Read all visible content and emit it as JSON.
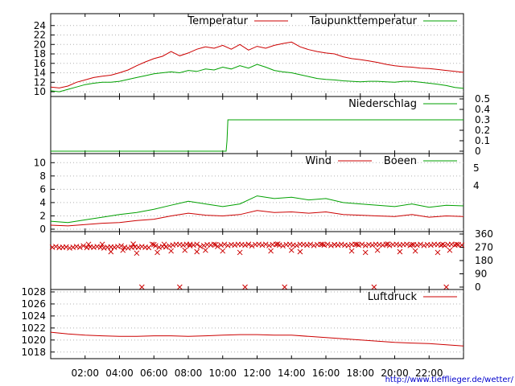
{
  "footer": {
    "url": "http://www.tiefflieger.de/wetter/"
  },
  "colors": {
    "red": "#cc0000",
    "green": "#00a000",
    "grid": "#b0b0b0",
    "axis": "#000000",
    "url": "#0000cc"
  },
  "chart_data": [
    {
      "type": "line",
      "id": "temperature",
      "ylim": [
        9.5,
        26
      ],
      "yticks": [
        "10",
        "12",
        "14",
        "16",
        "18",
        "20",
        "22",
        "24"
      ],
      "yticks_values": [
        10,
        12,
        14,
        16,
        18,
        20,
        22,
        24
      ],
      "grid": true,
      "legend_placement": "top-right",
      "series": [
        {
          "name": "Temperatur",
          "color": "#cc0000",
          "x": [
            0,
            0.5,
            1,
            1.5,
            2,
            2.5,
            3,
            3.5,
            4,
            4.5,
            5,
            5.5,
            6,
            6.5,
            7,
            7.5,
            8,
            8.5,
            9,
            9.5,
            10,
            10.5,
            11,
            11.5,
            12,
            12.5,
            13,
            13.5,
            14,
            14.5,
            15,
            15.5,
            16,
            16.5,
            17,
            17.5,
            18,
            18.5,
            19,
            19.5,
            20,
            20.5,
            21,
            21.5,
            22,
            22.5,
            23,
            23.5,
            24
          ],
          "y": [
            11,
            10.8,
            11.2,
            12,
            12.5,
            13,
            13.3,
            13.5,
            14,
            14.6,
            15.5,
            16.3,
            17,
            17.5,
            18.5,
            17.6,
            18.2,
            19,
            19.5,
            19.2,
            19.8,
            19,
            20,
            18.8,
            19.6,
            19.2,
            19.8,
            20.2,
            20.5,
            19.5,
            18.9,
            18.5,
            18.2,
            18,
            17.4,
            17,
            16.8,
            16.5,
            16.2,
            15.8,
            15.5,
            15.3,
            15.2,
            15,
            14.9,
            14.7,
            14.5,
            14.3,
            14.1
          ]
        },
        {
          "name": "Taupunkttemperatur",
          "color": "#00a000",
          "x": [
            0,
            0.5,
            1,
            1.5,
            2,
            2.5,
            3,
            3.5,
            4,
            4.5,
            5,
            5.5,
            6,
            6.5,
            7,
            7.5,
            8,
            8.5,
            9,
            9.5,
            10,
            10.5,
            11,
            11.5,
            12,
            12.5,
            13,
            13.5,
            14,
            14.5,
            15,
            15.5,
            16,
            16.5,
            17,
            17.5,
            18,
            18.5,
            19,
            19.5,
            20,
            20.5,
            21,
            21.5,
            22,
            22.5,
            23,
            23.5,
            24
          ],
          "y": [
            10.2,
            10,
            10.5,
            11,
            11.5,
            11.8,
            12,
            12,
            12.2,
            12.6,
            13,
            13.4,
            13.8,
            14,
            14.2,
            14,
            14.5,
            14.3,
            14.8,
            14.6,
            15.2,
            14.8,
            15.5,
            15,
            15.8,
            15.2,
            14.5,
            14.2,
            14,
            13.6,
            13.2,
            12.8,
            12.6,
            12.5,
            12.3,
            12.2,
            12.1,
            12.2,
            12.2,
            12.1,
            12,
            12.2,
            12.2,
            12,
            11.8,
            11.6,
            11.3,
            10.9,
            10.7
          ]
        }
      ]
    },
    {
      "type": "line",
      "id": "precipitation",
      "ylim": [
        0,
        0.5
      ],
      "yticks": [
        "0",
        "0.1",
        "0.2",
        "0.3",
        "0.4",
        "0.5"
      ],
      "yticks_values": [
        0,
        0.1,
        0.2,
        0.3,
        0.4,
        0.5
      ],
      "axis_side": "right",
      "legend_placement": "top-right",
      "series": [
        {
          "name": "Niederschlag",
          "color": "#00a000",
          "x": [
            0,
            10.2,
            10.25,
            10.3,
            24
          ],
          "y": [
            0,
            0,
            0.1,
            0.3,
            0.3
          ]
        }
      ]
    },
    {
      "type": "line",
      "id": "wind",
      "ylim": [
        0,
        11
      ],
      "yticks": [
        "0",
        "2",
        "4",
        "6",
        "8",
        "10"
      ],
      "yticks_values": [
        0,
        2,
        4,
        6,
        8,
        10
      ],
      "right_ticks": [
        "4",
        "5"
      ],
      "right_ticks_values": [
        6.5,
        9.2
      ],
      "grid": true,
      "legend_placement": "top-right",
      "series": [
        {
          "name": "Wind",
          "color": "#cc0000",
          "x": [
            0,
            1,
            2,
            3,
            4,
            5,
            6,
            7,
            8,
            9,
            10,
            11,
            12,
            13,
            14,
            15,
            16,
            17,
            18,
            19,
            20,
            21,
            22,
            23,
            24
          ],
          "y": [
            0.6,
            0.5,
            0.7,
            0.9,
            1.0,
            1.3,
            1.5,
            2.0,
            2.4,
            2.1,
            2.0,
            2.2,
            2.8,
            2.5,
            2.6,
            2.4,
            2.6,
            2.2,
            2.1,
            2.0,
            1.9,
            2.2,
            1.8,
            2.0,
            1.9
          ]
        },
        {
          "name": "Boeen",
          "color": "#00a000",
          "x": [
            0,
            1,
            2,
            3,
            4,
            5,
            6,
            7,
            8,
            9,
            10,
            11,
            12,
            13,
            14,
            15,
            16,
            17,
            18,
            19,
            20,
            21,
            22,
            23,
            24
          ],
          "y": [
            1.2,
            1.0,
            1.4,
            1.8,
            2.2,
            2.5,
            3.0,
            3.6,
            4.2,
            3.8,
            3.4,
            3.8,
            5.0,
            4.6,
            4.8,
            4.4,
            4.6,
            4.0,
            3.8,
            3.6,
            3.4,
            3.8,
            3.3,
            3.6,
            3.5
          ]
        }
      ]
    },
    {
      "type": "scatter",
      "id": "wind_direction",
      "ylim": [
        0,
        360
      ],
      "yticks": [
        "0",
        "90",
        "180",
        "270",
        "360"
      ],
      "yticks_values": [
        0,
        90,
        180,
        270,
        360
      ],
      "axis_side": "right",
      "series": [
        {
          "name": "",
          "color": "#cc0000",
          "x": [
            0.1,
            0.3,
            0.5,
            0.7,
            0.9,
            1.1,
            1.3,
            1.5,
            1.7,
            1.9,
            2.1,
            2.3,
            2.5,
            2.7,
            2.9,
            3.1,
            3.3,
            3.5,
            3.7,
            3.9,
            4.1,
            4.3,
            4.5,
            4.7,
            4.9,
            5.1,
            5.3,
            5.5,
            5.7,
            5.9,
            6.1,
            6.3,
            6.5,
            6.7,
            6.9,
            7.1,
            7.3,
            7.5,
            7.7,
            7.9,
            8.1,
            8.3,
            8.5,
            8.7,
            8.9,
            9.1,
            9.3,
            9.5,
            9.7,
            9.9,
            10.1,
            10.3,
            10.5,
            10.7,
            10.9,
            11.1,
            11.3,
            11.5,
            11.7,
            11.9,
            12.1,
            12.3,
            12.5,
            12.7,
            12.9,
            13.1,
            13.3,
            13.5,
            13.7,
            13.9,
            14.1,
            14.3,
            14.5,
            14.7,
            14.9,
            15.1,
            15.3,
            15.5,
            15.7,
            15.9,
            16.1,
            16.3,
            16.5,
            16.7,
            16.9,
            17.1,
            17.3,
            17.5,
            17.7,
            17.9,
            18.1,
            18.3,
            18.5,
            18.7,
            18.9,
            19.1,
            19.3,
            19.5,
            19.7,
            19.9,
            20.1,
            20.3,
            20.5,
            20.7,
            20.9,
            21.1,
            21.3,
            21.5,
            21.7,
            21.9,
            22.1,
            22.3,
            22.5,
            22.7,
            22.9,
            23.1,
            23.3,
            23.5,
            23.7,
            23.9,
            3.5,
            4.2,
            5.0,
            6.2,
            7.0,
            7.8,
            8.5,
            9.0,
            10.0,
            11.0,
            12.8,
            14.0,
            14.5,
            17.5,
            18.3,
            19.0,
            20.3,
            21.2,
            22.5,
            23.2,
            2.2,
            3.0,
            4.8,
            6.0,
            6.6,
            8.1,
            9.6,
            11.5,
            13.2,
            15.8,
            16.5,
            17.8,
            19.6,
            21.0,
            22.8,
            23.6,
            5.3,
            7.5,
            11.3,
            13.6,
            18.8,
            23.0
          ],
          "y": [
            270,
            275,
            268,
            270,
            272,
            265,
            270,
            275,
            270,
            280,
            268,
            272,
            270,
            275,
            270,
            265,
            270,
            272,
            270,
            275,
            280,
            270,
            265,
            270,
            272,
            270,
            275,
            270,
            268,
            290,
            280,
            270,
            275,
            272,
            280,
            285,
            290,
            288,
            285,
            290,
            280,
            285,
            290,
            275,
            282,
            288,
            285,
            290,
            275,
            285,
            290,
            282,
            288,
            285,
            290,
            288,
            285,
            290,
            280,
            288,
            290,
            285,
            290,
            282,
            288,
            290,
            285,
            280,
            288,
            290,
            285,
            282,
            290,
            288,
            285,
            290,
            282,
            288,
            290,
            285,
            290,
            282,
            288,
            285,
            290,
            285,
            282,
            288,
            290,
            285,
            290,
            282,
            288,
            285,
            290,
            288,
            285,
            290,
            282,
            288,
            290,
            285,
            288,
            290,
            282,
            288,
            285,
            290,
            282,
            288,
            285,
            290,
            288,
            285,
            282,
            288,
            290,
            285,
            288,
            285,
            240,
            250,
            230,
            235,
            245,
            250,
            240,
            250,
            245,
            235,
            245,
            250,
            240,
            245,
            235,
            250,
            240,
            245,
            235,
            250,
            290,
            290,
            292,
            288,
            290,
            290,
            288,
            290,
            292,
            290,
            288,
            290,
            292,
            288,
            290,
            290,
            0,
            0,
            0,
            0,
            0,
            0
          ]
        }
      ]
    },
    {
      "type": "line",
      "id": "pressure",
      "ylim": [
        1017.3,
        1028
      ],
      "yticks": [
        "1018",
        "1020",
        "1022",
        "1024",
        "1026",
        "1028"
      ],
      "yticks_values": [
        1018,
        1020,
        1022,
        1024,
        1026,
        1028
      ],
      "grid": true,
      "legend_placement": "top-right",
      "xticks": [
        "02:00",
        "04:00",
        "06:00",
        "08:00",
        "10:00",
        "12:00",
        "14:00",
        "16:00",
        "18:00",
        "20:00",
        "22:00"
      ],
      "xticks_values": [
        2,
        4,
        6,
        8,
        10,
        12,
        14,
        16,
        18,
        20,
        22
      ],
      "series": [
        {
          "name": "Luftdruck",
          "color": "#cc0000",
          "x": [
            0,
            1,
            2,
            3,
            4,
            5,
            6,
            7,
            8,
            9,
            10,
            11,
            12,
            13,
            14,
            15,
            16,
            17,
            18,
            19,
            20,
            21,
            22,
            23,
            24
          ],
          "y": [
            1021.3,
            1021.0,
            1020.8,
            1020.7,
            1020.6,
            1020.6,
            1020.7,
            1020.7,
            1020.6,
            1020.7,
            1020.8,
            1020.9,
            1020.9,
            1020.8,
            1020.8,
            1020.6,
            1020.4,
            1020.2,
            1020.0,
            1019.8,
            1019.6,
            1019.5,
            1019.4,
            1019.2,
            1019.0
          ]
        }
      ]
    }
  ]
}
